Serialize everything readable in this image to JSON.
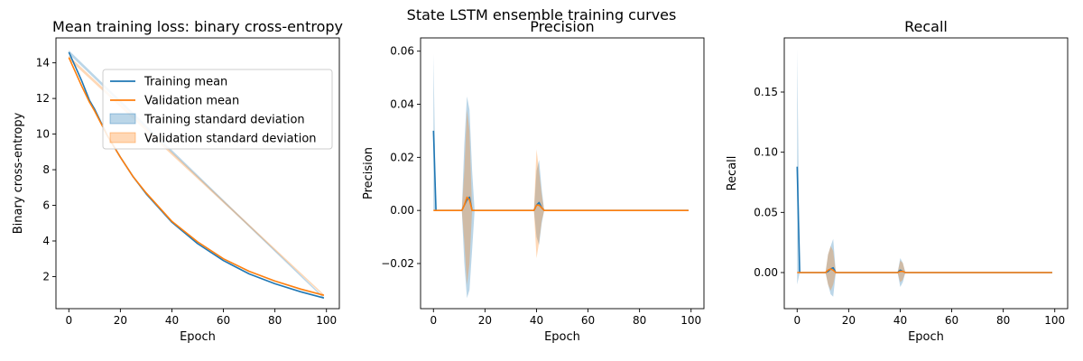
{
  "figure": {
    "suptitle": "State LSTM ensemble training curves"
  },
  "colors": {
    "training": "#1f77b4",
    "validation": "#ff7f0e"
  },
  "chart_data": [
    {
      "type": "line",
      "title": "Mean training loss: binary cross-entropy",
      "xlabel": "Epoch",
      "ylabel": "Binary cross-entropy",
      "xlim": [
        -5,
        105
      ],
      "ylim": [
        0.2,
        15.4
      ],
      "xticks": [
        0,
        20,
        40,
        60,
        80,
        100
      ],
      "yticks": [
        2,
        4,
        6,
        8,
        10,
        12,
        14
      ],
      "ytick_labels": [
        "2",
        "4",
        "6",
        "8",
        "10",
        "12",
        "14"
      ],
      "legend": {
        "placement": "upper-right",
        "entries": [
          "Training mean",
          "Validation mean",
          "Training standard deviation",
          "Validation standard deviation"
        ]
      },
      "series": [
        {
          "name": "Training mean",
          "color": "#1f77b4",
          "x": [
            0,
            5,
            8,
            10,
            15,
            20,
            25,
            30,
            40,
            50,
            60,
            70,
            80,
            90,
            99
          ],
          "y": [
            14.6,
            13.0,
            11.9,
            11.4,
            9.9,
            8.7,
            7.6,
            6.65,
            5.05,
            3.85,
            2.9,
            2.15,
            1.6,
            1.15,
            0.8
          ]
        },
        {
          "name": "Validation mean",
          "color": "#ff7f0e",
          "x": [
            0,
            5,
            8,
            10,
            15,
            20,
            25,
            30,
            40,
            50,
            60,
            70,
            80,
            90,
            99
          ],
          "y": [
            14.3,
            12.7,
            11.8,
            11.3,
            9.9,
            8.7,
            7.6,
            6.7,
            5.1,
            3.95,
            3.0,
            2.3,
            1.75,
            1.3,
            0.95
          ]
        }
      ],
      "bands": [
        {
          "name": "Training standard deviation",
          "color": "#1f77b4",
          "x": [
            0,
            99
          ],
          "lower": [
            14.5,
            0.75
          ],
          "upper": [
            14.7,
            0.85
          ]
        },
        {
          "name": "Validation standard deviation",
          "color": "#ff7f0e",
          "x": [
            0,
            99
          ],
          "lower": [
            14.2,
            0.9
          ],
          "upper": [
            14.4,
            1.0
          ]
        }
      ]
    },
    {
      "type": "line",
      "title": "Precision",
      "xlabel": "Epoch",
      "ylabel": "Precision",
      "xlim": [
        -5,
        105
      ],
      "ylim": [
        -0.037,
        0.065
      ],
      "xticks": [
        0,
        20,
        40,
        60,
        80,
        100
      ],
      "yticks": [
        -0.02,
        0.0,
        0.02,
        0.04,
        0.06
      ],
      "ytick_labels": [
        "−0.02",
        "0.00",
        "0.02",
        "0.04",
        "0.06"
      ],
      "series": [
        {
          "name": "Training mean",
          "color": "#1f77b4",
          "x": [
            0,
            1,
            2,
            11,
            12,
            13,
            14,
            15,
            39,
            40,
            41,
            42,
            43,
            99
          ],
          "y": [
            0.03,
            0.0,
            0.0,
            0.0,
            0.002,
            0.004,
            0.005,
            0.0,
            0.0,
            0.002,
            0.003,
            0.001,
            0.0,
            0.0
          ]
        },
        {
          "name": "Validation mean",
          "color": "#ff7f0e",
          "x": [
            0,
            11,
            12,
            13,
            14,
            15,
            39,
            40,
            41,
            42,
            43,
            99
          ],
          "y": [
            0.0,
            0.0,
            0.002,
            0.005,
            0.004,
            0.0,
            0.0,
            0.002,
            0.002,
            0.001,
            0.0,
            0.0
          ]
        }
      ],
      "bands": [
        {
          "name": "Training standard deviation",
          "color": "#1f77b4",
          "x": [
            0,
            1,
            2,
            11,
            12,
            13,
            14,
            15,
            16,
            39,
            40,
            41,
            42,
            43,
            99
          ],
          "lower": [
            0.0,
            0.0,
            0.0,
            0.0,
            -0.02,
            -0.033,
            -0.03,
            -0.015,
            0.0,
            0.0,
            -0.01,
            -0.013,
            -0.005,
            0.0,
            0.0
          ],
          "upper": [
            0.059,
            0.0,
            0.0,
            0.0,
            0.025,
            0.043,
            0.038,
            0.015,
            0.0,
            0.0,
            0.015,
            0.019,
            0.008,
            0.0,
            0.0
          ]
        },
        {
          "name": "Validation standard deviation",
          "color": "#ff7f0e",
          "x": [
            0,
            11,
            12,
            13,
            14,
            15,
            39,
            40,
            41,
            42,
            43,
            99
          ],
          "lower": [
            0.0,
            0.0,
            -0.012,
            -0.028,
            -0.02,
            0.0,
            0.0,
            -0.018,
            -0.012,
            -0.004,
            0.0,
            0.0
          ],
          "upper": [
            0.0,
            0.0,
            0.015,
            0.038,
            0.03,
            0.0,
            0.0,
            0.023,
            0.015,
            0.006,
            0.0,
            0.0
          ]
        }
      ]
    },
    {
      "type": "line",
      "title": "Recall",
      "xlabel": "Epoch",
      "ylabel": "Recall",
      "xlim": [
        -5,
        105
      ],
      "ylim": [
        -0.03,
        0.195
      ],
      "xticks": [
        0,
        20,
        40,
        60,
        80,
        100
      ],
      "yticks": [
        0.0,
        0.05,
        0.1,
        0.15
      ],
      "ytick_labels": [
        "0.00",
        "0.05",
        "0.10",
        "0.15"
      ],
      "series": [
        {
          "name": "Training mean",
          "color": "#1f77b4",
          "x": [
            0,
            1,
            2,
            11,
            12,
            13,
            14,
            15,
            39,
            40,
            41,
            42,
            99
          ],
          "y": [
            0.088,
            0.0,
            0.0,
            0.0,
            0.001,
            0.003,
            0.004,
            0.0,
            0.0,
            0.002,
            0.001,
            0.0,
            0.0
          ]
        },
        {
          "name": "Validation mean",
          "color": "#ff7f0e",
          "x": [
            0,
            11,
            12,
            13,
            14,
            15,
            39,
            40,
            41,
            42,
            99
          ],
          "y": [
            0.0,
            0.0,
            0.002,
            0.003,
            0.002,
            0.0,
            0.0,
            0.001,
            0.001,
            0.0,
            0.0
          ]
        }
      ],
      "bands": [
        {
          "name": "Training standard deviation",
          "color": "#1f77b4",
          "x": [
            0,
            1,
            2,
            11,
            12,
            13,
            14,
            15,
            39,
            40,
            41,
            42,
            99
          ],
          "lower": [
            -0.01,
            0.0,
            0.0,
            0.0,
            -0.01,
            -0.018,
            -0.02,
            0.0,
            0.0,
            -0.012,
            -0.008,
            0.0,
            0.0
          ],
          "upper": [
            0.186,
            0.0,
            0.0,
            0.0,
            0.015,
            0.022,
            0.028,
            0.0,
            0.0,
            0.012,
            0.008,
            0.0,
            0.0
          ]
        },
        {
          "name": "Validation standard deviation",
          "color": "#ff7f0e",
          "x": [
            0,
            11,
            12,
            13,
            14,
            15,
            39,
            40,
            41,
            42,
            99
          ],
          "lower": [
            0.0,
            0.0,
            -0.01,
            -0.015,
            -0.01,
            0.0,
            0.0,
            -0.008,
            -0.006,
            0.0,
            0.0
          ],
          "upper": [
            0.0,
            0.0,
            0.015,
            0.022,
            0.018,
            0.0,
            0.0,
            0.01,
            0.008,
            0.0,
            0.0
          ]
        }
      ]
    }
  ]
}
